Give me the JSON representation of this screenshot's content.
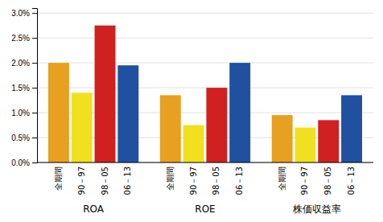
{
  "chart_data": {
    "type": "bar",
    "categories": [
      "ROA",
      "ROE",
      "株価収益率"
    ],
    "series": [
      {
        "name": "全期間",
        "color": "#E8A020",
        "values": [
          0.02,
          0.0135,
          0.0095
        ]
      },
      {
        "name": "90－97",
        "color": "#F0E020",
        "values": [
          0.014,
          0.0075,
          0.007
        ]
      },
      {
        "name": "98－05",
        "color": "#D02020",
        "values": [
          0.0275,
          0.015,
          0.0085
        ]
      },
      {
        "name": "06－13",
        "color": "#2050A0",
        "values": [
          0.0195,
          0.02,
          0.0135
        ]
      }
    ],
    "ylim": [
      0,
      0.031
    ],
    "yticks": [
      {
        "value": 0.0,
        "label": "0.0%"
      },
      {
        "value": 0.005,
        "label": "0.5%"
      },
      {
        "value": 0.01,
        "label": "1.0%"
      },
      {
        "value": 0.015,
        "label": "1.5%"
      },
      {
        "value": 0.02,
        "label": "2.0%"
      },
      {
        "value": 0.025,
        "label": "2.5%"
      },
      {
        "value": 0.03,
        "label": "3.0%"
      }
    ],
    "grid": true
  }
}
